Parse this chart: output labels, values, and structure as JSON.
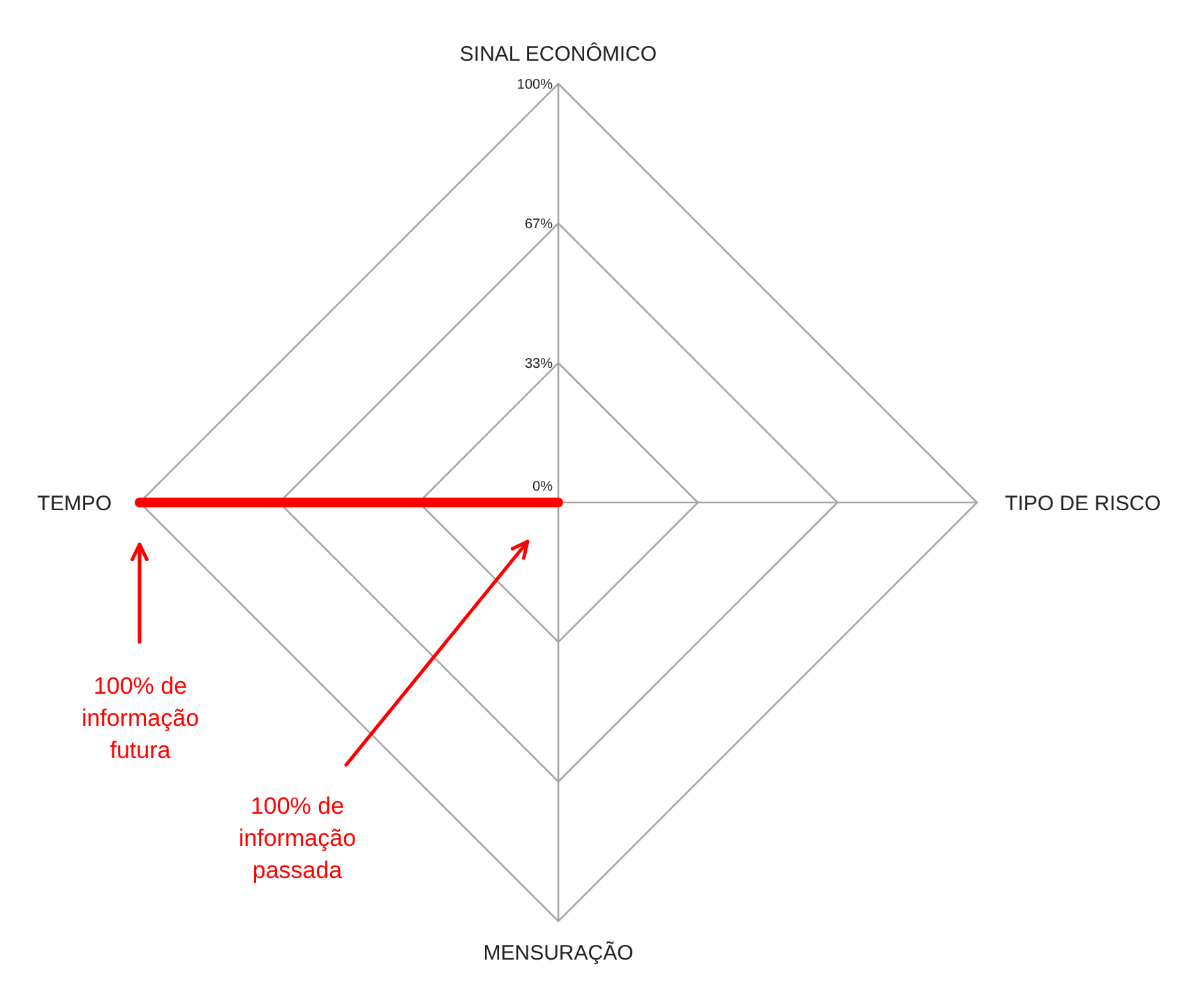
{
  "chart_data": {
    "type": "radar",
    "categories": [
      "SINAL ECONÔMICO",
      "TIPO DE RISCO",
      "MENSURAÇÃO",
      "TEMPO"
    ],
    "series": [
      {
        "color": "#ff0000",
        "values": [
          0,
          0,
          0,
          100
        ]
      }
    ],
    "ylim": [
      0,
      100
    ],
    "yticks": [
      {
        "value": 0,
        "label": "0%"
      },
      {
        "value": 33.33,
        "label": "33%"
      },
      {
        "value": 66.67,
        "label": "67%"
      },
      {
        "value": 100,
        "label": "100%"
      }
    ],
    "grid": true,
    "annotations": [
      "100% de informação futura",
      "100% de informação passada"
    ]
  }
}
